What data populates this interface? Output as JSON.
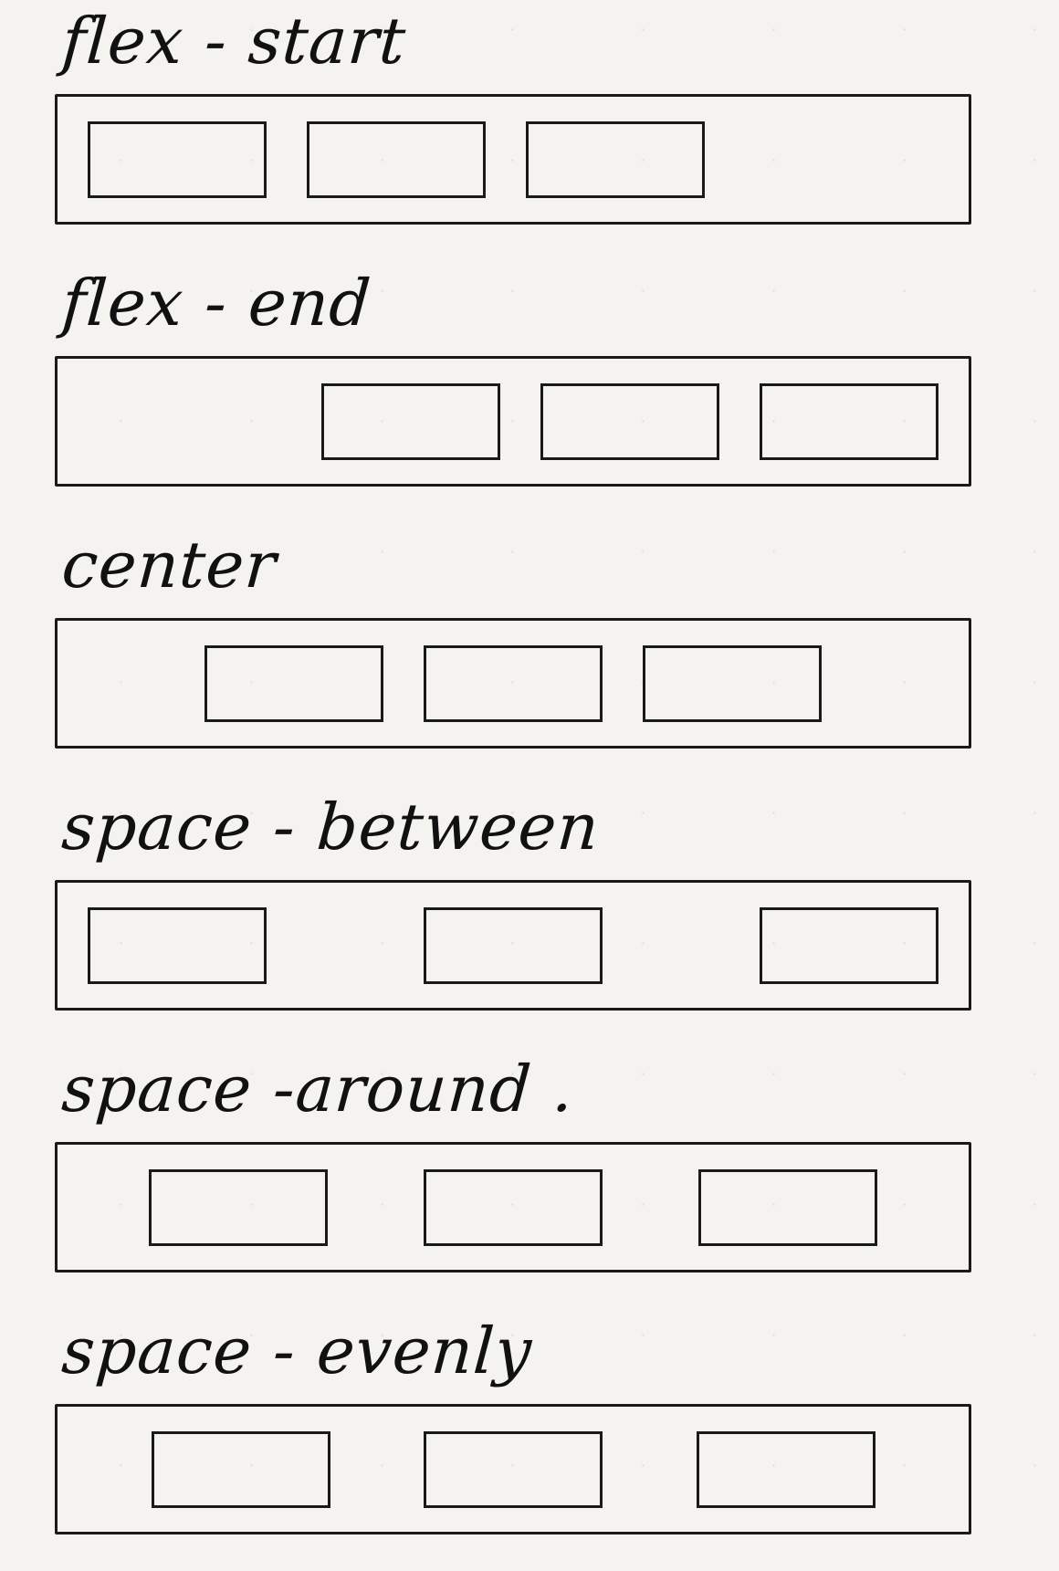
{
  "sections": [
    {
      "label": "flex - start",
      "value": "flex-start"
    },
    {
      "label": "flex - end",
      "value": "flex-end"
    },
    {
      "label": "center",
      "value": "center"
    },
    {
      "label": "space - between",
      "value": "space-between"
    },
    {
      "label": "space -around .",
      "value": "space-around"
    },
    {
      "label": "space - evenly",
      "value": "space-evenly"
    }
  ]
}
